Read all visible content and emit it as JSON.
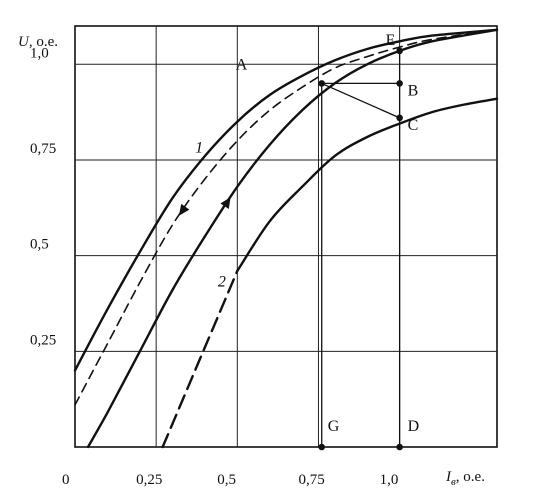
{
  "chart_data": {
    "type": "line",
    "title": "",
    "ylabel": {
      "symbol": "U",
      "unit": ", о.е."
    },
    "xlabel": {
      "symbol": "I",
      "subscript": "в",
      "unit": ", о.е."
    },
    "xlim": [
      0,
      1.3
    ],
    "ylim": [
      0,
      1.1
    ],
    "grid": true,
    "x_ticks": [
      {
        "value": 0,
        "label": "0"
      },
      {
        "value": 0.25,
        "label": "0,25"
      },
      {
        "value": 0.5,
        "label": "0,5"
      },
      {
        "value": 0.75,
        "label": "0,75"
      },
      {
        "value": 1.0,
        "label": "1,0"
      }
    ],
    "y_ticks": [
      {
        "value": 0.25,
        "label": "0,25"
      },
      {
        "value": 0.5,
        "label": "0,5"
      },
      {
        "value": 0.75,
        "label": "0,75"
      },
      {
        "value": 1.0,
        "label": "1,0"
      }
    ],
    "series": [
      {
        "id": "curve1-descending",
        "style": "solid",
        "points": [
          [
            0,
            0.2
          ],
          [
            0.1,
            0.36
          ],
          [
            0.2,
            0.51
          ],
          [
            0.3,
            0.65
          ],
          [
            0.4,
            0.76
          ],
          [
            0.5,
            0.85
          ],
          [
            0.6,
            0.92
          ],
          [
            0.7,
            0.97
          ],
          [
            0.8,
            1.01
          ],
          [
            0.9,
            1.04
          ],
          [
            1.0,
            1.06
          ],
          [
            1.1,
            1.075
          ],
          [
            1.3,
            1.09
          ]
        ]
      },
      {
        "id": "curve1-mid-dashed",
        "style": "dashed",
        "points": [
          [
            0,
            0.11
          ],
          [
            0.1,
            0.27
          ],
          [
            0.2,
            0.43
          ],
          [
            0.3,
            0.58
          ],
          [
            0.4,
            0.7
          ],
          [
            0.5,
            0.8
          ],
          [
            0.6,
            0.88
          ],
          [
            0.7,
            0.94
          ],
          [
            0.8,
            0.99
          ],
          [
            0.9,
            1.02
          ],
          [
            1.0,
            1.045
          ],
          [
            1.1,
            1.065
          ],
          [
            1.3,
            1.09
          ]
        ]
      },
      {
        "id": "curve1-ascending",
        "style": "solid",
        "points": [
          [
            0.04,
            0
          ],
          [
            0.1,
            0.09
          ],
          [
            0.2,
            0.25
          ],
          [
            0.3,
            0.41
          ],
          [
            0.4,
            0.55
          ],
          [
            0.5,
            0.68
          ],
          [
            0.6,
            0.79
          ],
          [
            0.7,
            0.88
          ],
          [
            0.8,
            0.95
          ],
          [
            0.9,
            1.0
          ],
          [
            1.0,
            1.035
          ],
          [
            1.1,
            1.06
          ],
          [
            1.3,
            1.09
          ]
        ]
      },
      {
        "id": "curve2-dashed-part",
        "style": "dashed-bold",
        "points": [
          [
            0.27,
            0
          ],
          [
            0.3,
            0.06
          ],
          [
            0.35,
            0.16
          ],
          [
            0.4,
            0.26
          ],
          [
            0.45,
            0.36
          ],
          [
            0.5,
            0.46
          ]
        ]
      },
      {
        "id": "curve2-solid-part",
        "style": "solid",
        "points": [
          [
            0.5,
            0.46
          ],
          [
            0.6,
            0.59
          ],
          [
            0.7,
            0.68
          ],
          [
            0.8,
            0.76
          ],
          [
            0.9,
            0.81
          ],
          [
            1.0,
            0.845
          ],
          [
            1.1,
            0.875
          ],
          [
            1.2,
            0.895
          ],
          [
            1.3,
            0.91
          ]
        ]
      }
    ],
    "arrows": [
      {
        "series": "curve1-mid-dashed",
        "x": 0.33,
        "direction": "down"
      },
      {
        "series": "curve1-ascending",
        "x": 0.47,
        "direction": "up"
      }
    ],
    "points": [
      {
        "id": "A",
        "label": "A",
        "x": 0.76,
        "y": 0.95
      },
      {
        "id": "B",
        "label": "B",
        "x": 1.0,
        "y": 0.95
      },
      {
        "id": "C",
        "label": "C",
        "x": 1.0,
        "y": 0.86
      },
      {
        "id": "E",
        "label": "E",
        "x": 1.0,
        "y": 1.035
      },
      {
        "id": "G",
        "label": "G",
        "x": 0.76,
        "y": 0
      },
      {
        "id": "D",
        "label": "D",
        "x": 1.0,
        "y": 0
      }
    ],
    "segments": [
      {
        "from": "A",
        "to": "B"
      },
      {
        "from": "A",
        "to": "C"
      },
      {
        "from": "E",
        "to": "D"
      },
      {
        "from": "A",
        "to": "G"
      }
    ],
    "curve_labels": [
      {
        "label": "1",
        "x": 0.37,
        "y": 0.77
      },
      {
        "label": "2",
        "x": 0.44,
        "y": 0.42
      }
    ]
  }
}
